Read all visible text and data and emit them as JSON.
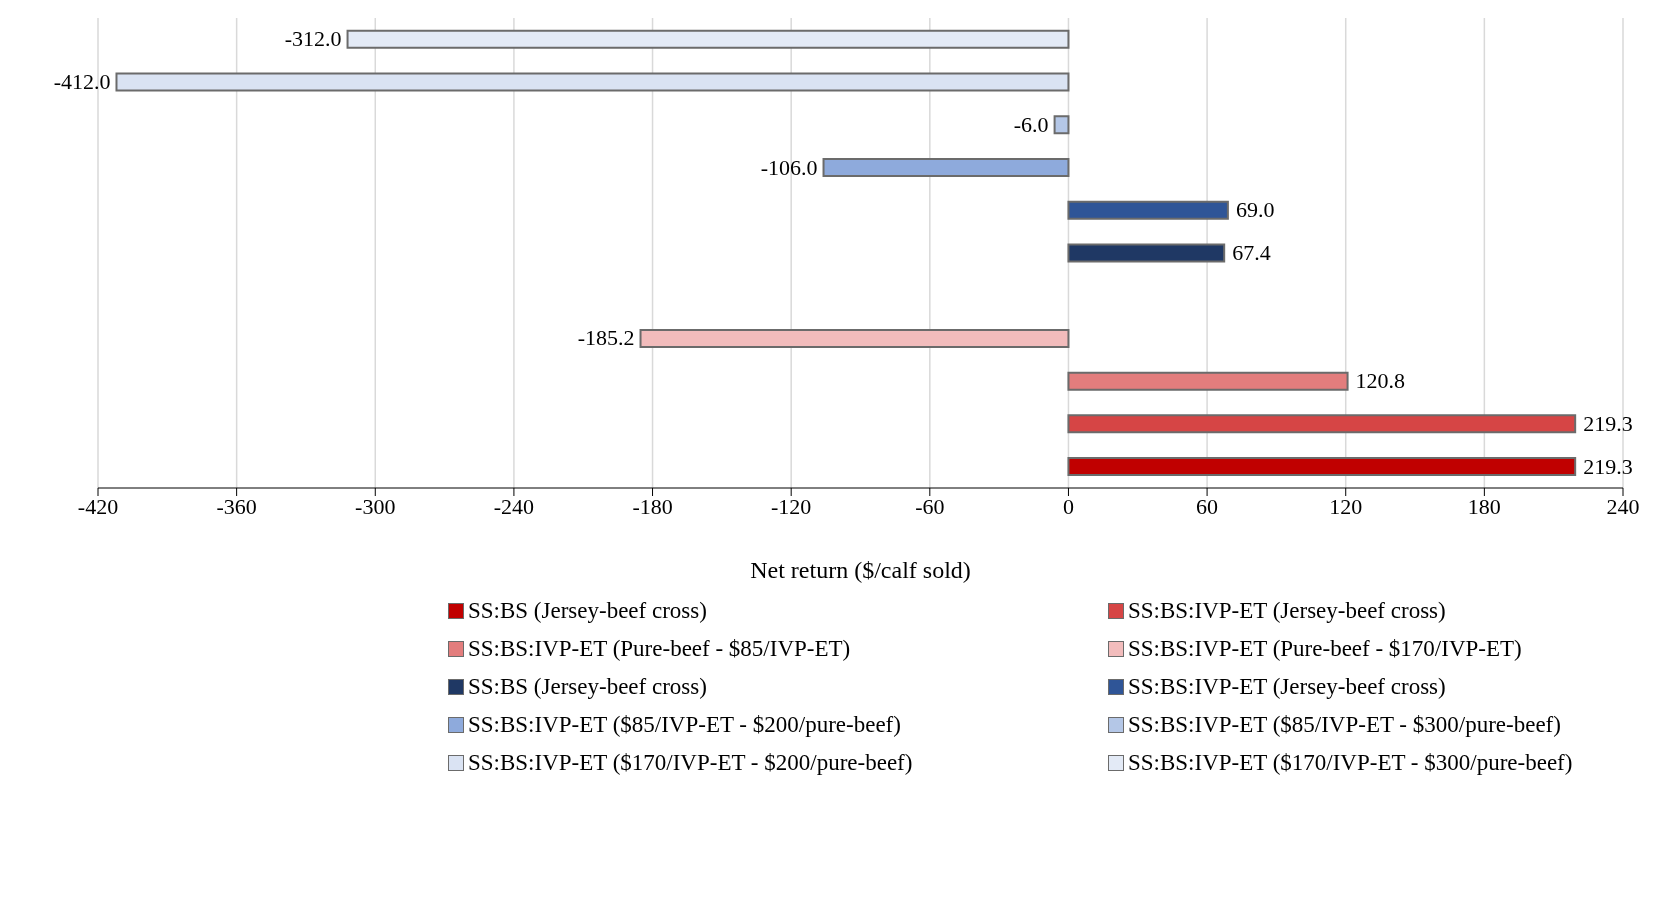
{
  "chart_data": {
    "type": "bar",
    "orientation": "horizontal",
    "stacked": true,
    "xlabel": "Net return ($/calf sold)",
    "categories": [
      null,
      null,
      null,
      null,
      null,
      null,
      null,
      null,
      null,
      null,
      null
    ],
    "series": [
      {
        "name": "SS:BS (Jersey-beef cross)",
        "color": "#c00000",
        "values": [
          null,
          null,
          null,
          null,
          null,
          null,
          null,
          null,
          null,
          null,
          219.3
        ],
        "value_labels": [
          null,
          null,
          null,
          null,
          null,
          null,
          null,
          null,
          null,
          null,
          "219.3"
        ]
      },
      {
        "name": "SS:BS:IVP-ET (Jersey-beef cross)",
        "color": "#d64545",
        "values": [
          null,
          null,
          null,
          null,
          null,
          null,
          null,
          null,
          null,
          219.3,
          null
        ],
        "value_labels": [
          null,
          null,
          null,
          null,
          null,
          null,
          null,
          null,
          null,
          "219.3",
          null
        ]
      },
      {
        "name": "SS:BS:IVP-ET (Pure-beef - $85/IVP-ET)",
        "color": "#e37d7d",
        "values": [
          null,
          null,
          null,
          null,
          null,
          null,
          null,
          null,
          120.8,
          null,
          null
        ],
        "value_labels": [
          null,
          null,
          null,
          null,
          null,
          null,
          null,
          null,
          "120.8",
          null,
          null
        ]
      },
      {
        "name": "SS:BS:IVP-ET (Pure-beef - $170/IVP-ET)",
        "color": "#f2bcbc",
        "values": [
          null,
          null,
          null,
          null,
          null,
          null,
          null,
          -185.2,
          null,
          null,
          null
        ],
        "value_labels": [
          null,
          null,
          null,
          null,
          null,
          null,
          null,
          "-185.2",
          null,
          null,
          null
        ]
      },
      {
        "name": "SS:BS (Jersey-beef cross)",
        "color": "#1f3864",
        "values": [
          null,
          null,
          null,
          null,
          null,
          67.4,
          null,
          null,
          null,
          null,
          null
        ],
        "value_labels": [
          null,
          null,
          null,
          null,
          null,
          "67.4",
          null,
          null,
          null,
          null,
          null
        ]
      },
      {
        "name": "SS:BS:IVP-ET (Jersey-beef cross)",
        "color": "#2f5597",
        "values": [
          null,
          null,
          null,
          null,
          69.0,
          null,
          null,
          null,
          null,
          null,
          null
        ],
        "value_labels": [
          null,
          null,
          null,
          null,
          "69.0",
          null,
          null,
          null,
          null,
          null,
          null
        ]
      },
      {
        "name": "SS:BS:IVP-ET ($85/IVP-ET - $200/pure-beef)",
        "color": "#8eaadc",
        "values": [
          null,
          null,
          null,
          -106.0,
          null,
          null,
          null,
          null,
          null,
          null,
          null
        ],
        "value_labels": [
          null,
          null,
          null,
          "-106.0",
          null,
          null,
          null,
          null,
          null,
          null,
          null
        ]
      },
      {
        "name": "SS:BS:IVP-ET ($85/IVP-ET - $300/pure-beef)",
        "color": "#b4c7e7",
        "values": [
          null,
          null,
          -6.0,
          null,
          null,
          null,
          null,
          null,
          null,
          null,
          null
        ],
        "value_labels": [
          null,
          null,
          "-6.0",
          null,
          null,
          null,
          null,
          null,
          null,
          null,
          null
        ]
      },
      {
        "name": "SS:BS:IVP-ET ($170/IVP-ET - $200/pure-beef)",
        "color": "#dae3f3",
        "values": [
          null,
          -412.0,
          null,
          null,
          null,
          null,
          null,
          null,
          null,
          null,
          null
        ],
        "value_labels": [
          null,
          "-412.0",
          null,
          null,
          null,
          null,
          null,
          null,
          null,
          null,
          null
        ]
      },
      {
        "name": "SS:BS:IVP-ET ($170/IVP-ET - $300/pure-beef)",
        "color": "#e3eaf6",
        "values": [
          -312.0,
          null,
          null,
          null,
          null,
          null,
          null,
          null,
          null,
          null,
          null
        ],
        "value_labels": [
          "-312.0",
          null,
          null,
          null,
          null,
          null,
          null,
          null,
          null,
          null,
          null
        ]
      }
    ],
    "xlim": [
      -420,
      240
    ],
    "xticks": [
      -420,
      -360,
      -300,
      -240,
      -180,
      -120,
      -60,
      0,
      60,
      120,
      180,
      240
    ],
    "grid": "x",
    "legend": "bottom"
  }
}
